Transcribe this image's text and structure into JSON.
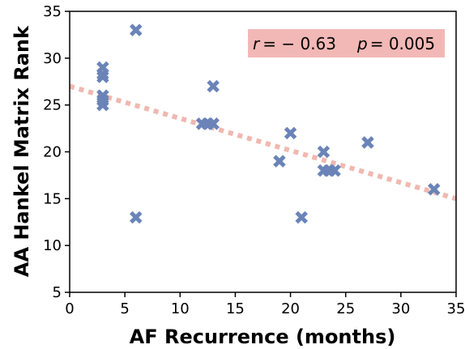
{
  "chart_data": {
    "type": "scatter",
    "xlabel": "AF Recurrence (months)",
    "ylabel": "AA Hankel Matrix Rank",
    "xlim": [
      0,
      35
    ],
    "ylim": [
      5,
      35
    ],
    "xticks": [
      0,
      5,
      10,
      15,
      20,
      25,
      30,
      35
    ],
    "yticks": [
      5,
      10,
      15,
      20,
      25,
      30,
      35
    ],
    "grid": false,
    "marker": "X",
    "marker_color": "#6a84b8",
    "points": [
      {
        "x": 3,
        "y": 29
      },
      {
        "x": 3,
        "y": 28.3
      },
      {
        "x": 3,
        "y": 28
      },
      {
        "x": 3,
        "y": 26
      },
      {
        "x": 3,
        "y": 25.5
      },
      {
        "x": 3,
        "y": 25
      },
      {
        "x": 6,
        "y": 33
      },
      {
        "x": 6,
        "y": 13
      },
      {
        "x": 12,
        "y": 23
      },
      {
        "x": 12.5,
        "y": 23
      },
      {
        "x": 13,
        "y": 23
      },
      {
        "x": 13,
        "y": 27
      },
      {
        "x": 19,
        "y": 19
      },
      {
        "x": 20,
        "y": 22
      },
      {
        "x": 21,
        "y": 13
      },
      {
        "x": 23,
        "y": 20
      },
      {
        "x": 23,
        "y": 18
      },
      {
        "x": 23.5,
        "y": 18
      },
      {
        "x": 24,
        "y": 18
      },
      {
        "x": 27,
        "y": 21
      },
      {
        "x": 33,
        "y": 16
      }
    ],
    "trendline": {
      "color": "#f0b8b0",
      "style": "dotted",
      "x": [
        0,
        35
      ],
      "y": [
        27,
        15
      ]
    },
    "annotation": {
      "r_symbol": "r",
      "r_value": "= − 0.63",
      "p_symbol": "p",
      "p_value": "= 0.005",
      "background": "#f2b8b6",
      "placement": "top-right"
    }
  }
}
